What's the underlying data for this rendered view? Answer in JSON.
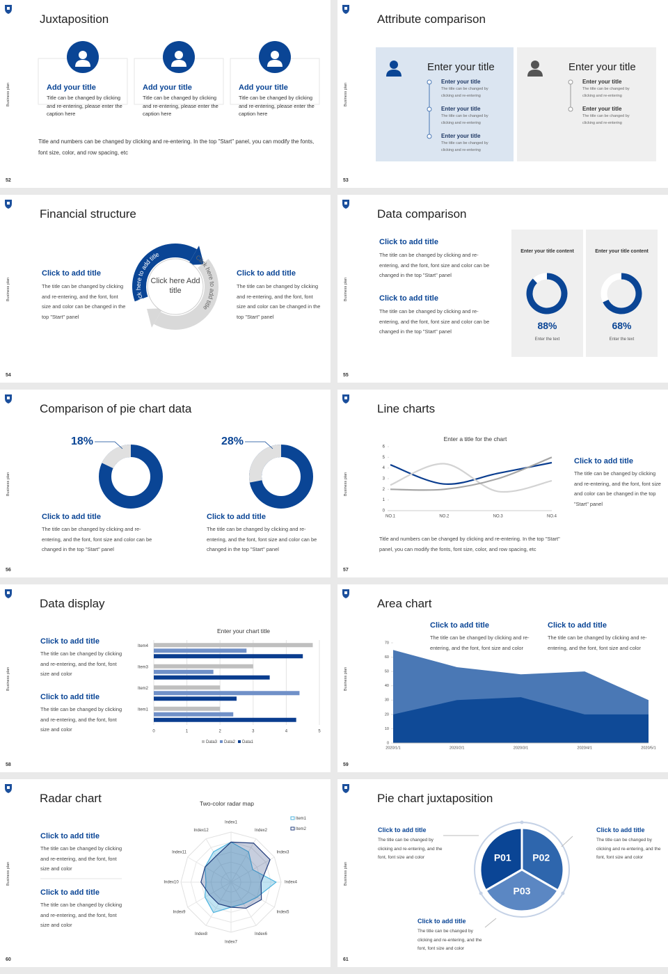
{
  "side_label": "Business plan",
  "slides": [
    {
      "number": "52",
      "title": "Juxtaposition",
      "items": [
        {
          "title": "Add your title",
          "text": "Title can be changed by clicking and re-entering, please enter the caption here"
        },
        {
          "title": "Add your title",
          "text": "Title can be changed by clicking and re-entering, please enter the caption here"
        },
        {
          "title": "Add your title",
          "text": "Title can be changed by clicking and re-entering, please enter the caption here"
        }
      ],
      "note": "Title and numbers can be changed by clicking and re-entering. In the top \"Start\" panel, you can modify the fonts, font size, color, and row spacing, etc"
    },
    {
      "number": "53",
      "title": "Attribute comparison",
      "panels": [
        {
          "title": "Enter your title",
          "items": [
            {
              "title": "Enter your title",
              "text": "The title can be changed by clicking and re-entering"
            },
            {
              "title": "Enter your title",
              "text": "The title can be changed by clicking and re-entering"
            },
            {
              "title": "Enter your title",
              "text": "The title can be changed by clicking and re-entering"
            }
          ]
        },
        {
          "title": "Enter your title",
          "items": [
            {
              "title": "Enter your title",
              "text": "The title can be changed by clicking and re-entering"
            },
            {
              "title": "Enter your title",
              "text": "The title can be changed by clicking and re-entering"
            }
          ]
        }
      ]
    },
    {
      "number": "54",
      "title": "Financial structure",
      "items": [
        {
          "title": "Click to add title",
          "text": "The title can be changed by clicking and re-entering, and the font, font size and color can be changed in the top \"Start\" panel"
        },
        {
          "title": "Click to add title",
          "text": "The title can be changed by clicking and re-entering, and the font, font size and color can be changed in the top \"Start\" panel"
        }
      ],
      "center": "Click here Add title",
      "arc_labels": [
        "Click here to add title",
        "Click here to add title"
      ]
    },
    {
      "number": "55",
      "title": "Data comparison",
      "items": [
        {
          "title": "Click to add title",
          "text": "The title can be changed by clicking and re-entering, and the font, font size and color can be changed in the top \"Start\" panel"
        },
        {
          "title": "Click to add title",
          "text": "The title can be changed by clicking and re-entering, and the font, font size and color can be changed in the top \"Start\" panel"
        }
      ],
      "cards": [
        {
          "heading": "Enter your title content",
          "value": 88,
          "value_label": "88%",
          "caption": "Enter the text"
        },
        {
          "heading": "Enter your title content",
          "value": 68,
          "value_label": "68%",
          "caption": "Enter the text"
        }
      ]
    },
    {
      "number": "56",
      "title": "Comparison of pie chart data",
      "pies": [
        {
          "value": 18,
          "value_label": "18%",
          "title": "Click to add title",
          "text": "The title can be changed by clicking and re-entering, and the font, font size and color can be changed in the top \"Start\" panel"
        },
        {
          "value": 28,
          "value_label": "28%",
          "title": "Click to add title",
          "text": "The title can be changed by clicking and re-entering, and the font, font size and color can be changed in the top \"Start\" panel"
        }
      ]
    },
    {
      "number": "57",
      "title": "Line charts",
      "chart": {
        "type": "line",
        "title": "Enter a title for the chart",
        "categories": [
          "NO.1",
          "NO.2",
          "NO.3",
          "NO.4"
        ],
        "ylim": [
          0,
          6
        ],
        "yticks": [
          0,
          1,
          2,
          3,
          4,
          5,
          6
        ],
        "series": [
          {
            "color": "#0a3d8f",
            "values": [
              4.3,
              2.5,
              3.5,
              4.5
            ]
          },
          {
            "color": "#d3d3d3",
            "values": [
              2.4,
              4.4,
              1.8,
              2.8
            ]
          },
          {
            "color": "#a6a6a6",
            "values": [
              2,
              2,
              3,
              5
            ]
          }
        ]
      },
      "item": {
        "title": "Click to add title",
        "text": "The title can be changed by clicking and re-entering, and the font, font size and color can be changed in the top \"Start\" panel"
      },
      "note": "Title and numbers can be changed by clicking and re-entering. In the top \"Start\" panel, you can modify the fonts, font size, color, and row spacing, etc"
    },
    {
      "number": "58",
      "title": "Data display",
      "items": [
        {
          "title": "Click to add title",
          "text": "The title can be changed by clicking and re-entering, and the font, font size and color"
        },
        {
          "title": "Click to add title",
          "text": "The title can be changed by clicking and re-entering, and the font, font size and color"
        }
      ],
      "chart": {
        "type": "bar",
        "orientation": "horizontal",
        "title": "Enter your chart title",
        "categories": [
          "Item1",
          "Item2",
          "Item3",
          "Item4"
        ],
        "xlim": [
          0,
          5
        ],
        "xticks": [
          0,
          1,
          2,
          3,
          4,
          5
        ],
        "grid": true,
        "series": [
          {
            "name": "Data3",
            "color": "#bfbfbf",
            "values": [
              2,
              2,
              3,
              4.8
            ]
          },
          {
            "name": "Data2",
            "color": "#7090c8",
            "values": [
              2.4,
              4.4,
              1.8,
              2.8
            ]
          },
          {
            "name": "Data1",
            "color": "#0a3d8f",
            "values": [
              4.3,
              2.5,
              3.5,
              4.5
            ]
          }
        ]
      }
    },
    {
      "number": "59",
      "title": "Area chart",
      "items": [
        {
          "title": "Click to add title",
          "text": "The title can be changed by clicking and re-entering, and the font, font size and color"
        },
        {
          "title": "Click to add title",
          "text": "The title can be changed by clicking and re-entering, and the font, font size and color"
        }
      ],
      "chart": {
        "type": "area",
        "categories": [
          "2020/1/1",
          "2020/2/1",
          "2020/3/1",
          "2020/4/1",
          "2020/5/1"
        ],
        "ylim": [
          0,
          70
        ],
        "yticks": [
          0,
          10,
          20,
          30,
          40,
          50,
          60,
          70
        ],
        "series": [
          {
            "color": "#4a78b5",
            "values": [
              65,
              53,
              48,
              50,
              30
            ]
          },
          {
            "color": "#0f4a97",
            "values": [
              20,
              30,
              32,
              20,
              20
            ]
          }
        ]
      }
    },
    {
      "number": "60",
      "title": "Radar chart",
      "items": [
        {
          "title": "Click to add title",
          "text": "The title can be changed by clicking and re-entering, and the font, font size and color"
        },
        {
          "title": "Click to add title",
          "text": "The title can be changed by clicking and re-entering, and the font, font size and color"
        }
      ],
      "chart": {
        "type": "radar",
        "title": "Two-color radar map",
        "categories": [
          "Index1",
          "Index2",
          "Index3",
          "Index4",
          "Index5",
          "Index6",
          "Index7",
          "Index8",
          "Index9",
          "Index10",
          "Index11",
          "Index12"
        ],
        "rlim": [
          0,
          10
        ],
        "series": [
          {
            "name": "Item1",
            "color": "#4db3de",
            "values": [
              8,
              7,
              5,
              9,
              6,
              5,
              5,
              7,
              6,
              5,
              6,
              7
            ]
          },
          {
            "name": "Item2",
            "color": "#1f3a7a",
            "values": [
              8,
              9,
              9,
              6,
              7,
              6,
              5,
              5,
              5,
              6,
              6,
              6
            ]
          }
        ]
      }
    },
    {
      "number": "61",
      "title": "Pie chart juxtaposition",
      "items": [
        {
          "title": "Click to add title",
          "text": "The title can be changed by clicking and re-entering, and the font, font size and color"
        },
        {
          "title": "Click to add title",
          "text": "The title can be changed by clicking and re-entering, and the font, font size and color"
        },
        {
          "title": "Click to add title",
          "text": "The title can be changed by clicking and re-entering, and the font, font size and color"
        }
      ],
      "segments": [
        "P01",
        "P02",
        "P03"
      ]
    }
  ]
}
